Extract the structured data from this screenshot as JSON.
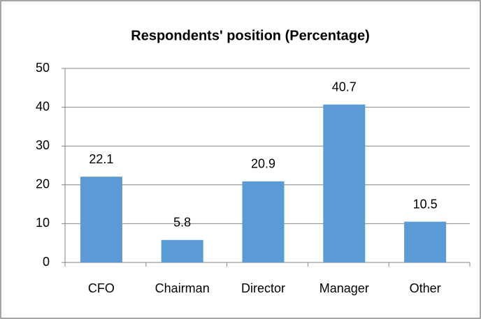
{
  "chart_data": {
    "type": "bar",
    "title": "Respondents' position (Percentage)",
    "categories": [
      "CFO",
      "Chairman",
      "Director",
      "Manager",
      "Other"
    ],
    "values": [
      22.1,
      5.8,
      20.9,
      40.7,
      10.5
    ],
    "color": "#5b9bd5",
    "ylim": [
      0,
      50
    ],
    "yticks": [
      0,
      10,
      20,
      30,
      40,
      50
    ],
    "grid": true,
    "data_labels": true
  }
}
